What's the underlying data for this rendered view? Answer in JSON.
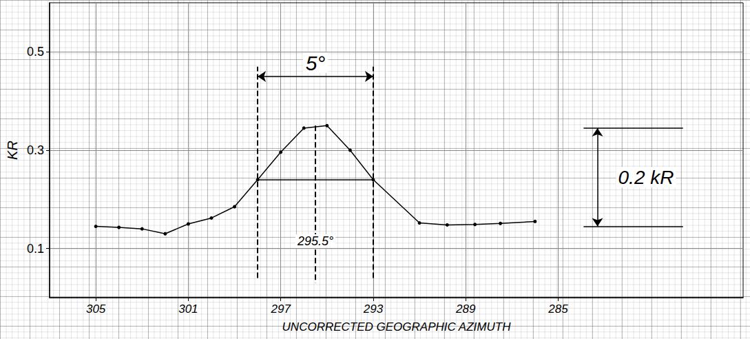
{
  "chart_data": {
    "type": "line",
    "x_label": "UNCORRECTED GEOGRAPHIC AZIMUTH",
    "y_label": "KR",
    "x": [
      305,
      304,
      303,
      302,
      301,
      300,
      299,
      298,
      297,
      296,
      295,
      294,
      293,
      291,
      289.8,
      288.6,
      287.5,
      286
    ],
    "values": [
      0.145,
      0.143,
      0.14,
      0.13,
      0.15,
      0.162,
      0.185,
      0.24,
      0.296,
      0.345,
      0.35,
      0.3,
      0.24,
      0.152,
      0.148,
      0.149,
      0.151,
      0.155
    ],
    "color": "#000000",
    "marker": "circle",
    "xlim": [
      307,
      277
    ],
    "ylim": [
      0,
      0.6
    ],
    "xticks": [
      305,
      301,
      297,
      293,
      289,
      285
    ],
    "yticks": [
      0.1,
      0.3,
      0.5
    ],
    "grid": true,
    "annotations": [
      {
        "text": "5°",
        "x_range": [
          298,
          293
        ],
        "arrow_y": 0.45,
        "guide_y_span": [
          0.04,
          0.47
        ],
        "half_max": 0.24
      },
      {
        "text": "295.5°",
        "x": 295.5,
        "y_span": [
          0.35,
          0.03
        ],
        "label_y": 0.115
      },
      {
        "text": "0.2 kR",
        "x_range": [
          283.9,
          279.6
        ],
        "y_range": [
          0.145,
          0.345
        ],
        "arrow_x": 283.3,
        "label_x": 281.2
      }
    ]
  }
}
